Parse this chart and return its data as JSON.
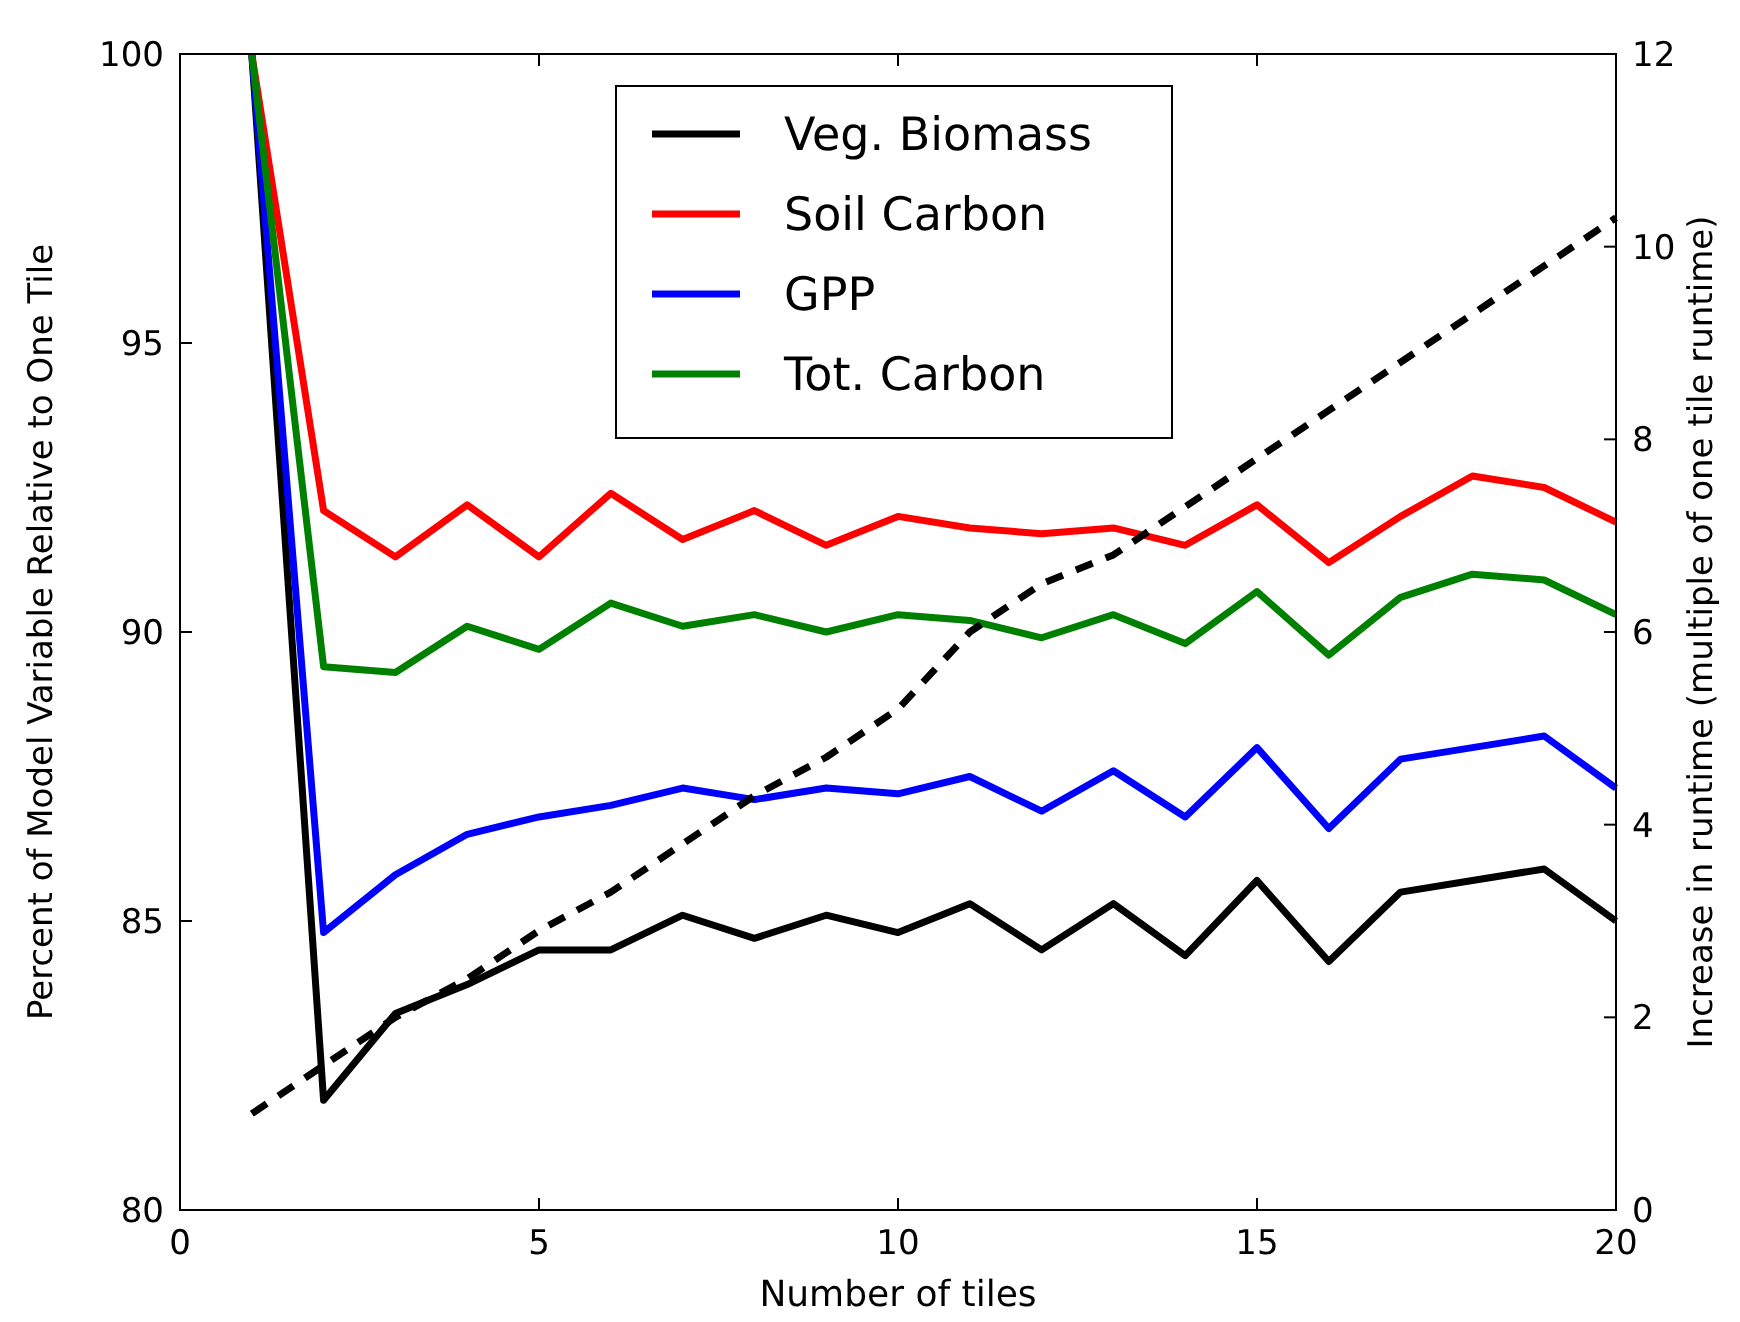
{
  "chart_data": {
    "type": "line",
    "xlabel": "Number of tiles",
    "ylabel": "Percent of Model Variable Relative to One Tile",
    "y2label": "Increase in runtime (multiple of one tile runtime)",
    "x": [
      1,
      2,
      3,
      4,
      5,
      6,
      7,
      8,
      9,
      10,
      11,
      12,
      13,
      14,
      15,
      16,
      17,
      18,
      19,
      20
    ],
    "xlim": [
      0,
      20
    ],
    "xticks": [
      0,
      5,
      10,
      15,
      20
    ],
    "ylim": [
      80,
      100
    ],
    "yticks": [
      80,
      85,
      90,
      95,
      100
    ],
    "y2lim": [
      0,
      12
    ],
    "y2ticks": [
      0,
      2,
      4,
      6,
      8,
      10,
      12
    ],
    "legend": "top",
    "grid": false,
    "marker": "none",
    "series": [
      {
        "name": "Veg. Biomass",
        "color": "#000000",
        "values": [
          100,
          81.9,
          83.4,
          83.9,
          84.5,
          84.5,
          85.1,
          84.7,
          85.1,
          84.8,
          85.3,
          84.5,
          85.3,
          84.4,
          85.7,
          84.3,
          85.5,
          85.7,
          85.9,
          85.0
        ]
      },
      {
        "name": "Soil Carbon",
        "color": "#ff0000",
        "values": [
          100,
          92.1,
          91.3,
          92.2,
          91.3,
          92.4,
          91.6,
          92.1,
          91.5,
          92.0,
          91.8,
          91.7,
          91.8,
          91.5,
          92.2,
          91.2,
          92.0,
          92.7,
          92.5,
          91.9
        ]
      },
      {
        "name": "GPP",
        "color": "#0000ff",
        "values": [
          100,
          84.8,
          85.8,
          86.5,
          86.8,
          87.0,
          87.3,
          87.1,
          87.3,
          87.2,
          87.5,
          86.9,
          87.6,
          86.8,
          88.0,
          86.6,
          87.8,
          88.0,
          88.2,
          87.3
        ]
      },
      {
        "name": "Tot. Carbon",
        "color": "#008000",
        "values": [
          100,
          89.4,
          89.3,
          90.1,
          89.7,
          90.5,
          90.1,
          90.3,
          90.0,
          90.3,
          90.2,
          89.9,
          90.3,
          89.8,
          90.7,
          89.6,
          90.6,
          91.0,
          90.9,
          90.3
        ]
      },
      {
        "color": "#000000",
        "axis": "y2",
        "line_style": "dashed",
        "values": [
          1.0,
          1.5,
          2.0,
          2.4,
          2.9,
          3.3,
          3.8,
          4.3,
          4.7,
          5.2,
          6.0,
          6.5,
          6.8,
          7.3,
          7.8,
          8.3,
          8.8,
          9.3,
          9.8,
          10.3
        ]
      }
    ]
  }
}
